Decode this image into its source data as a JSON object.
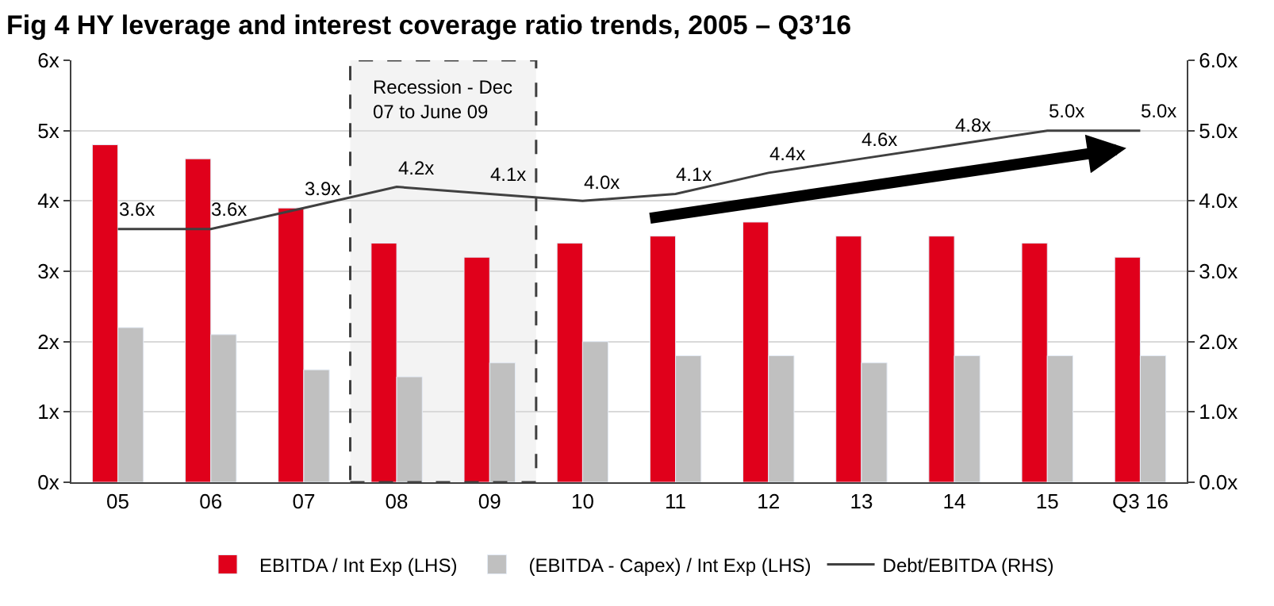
{
  "chart_data": {
    "type": "bar",
    "title": "Fig 4 HY leverage and interest coverage ratio trends, 2005 – Q3’16",
    "categories": [
      "05",
      "06",
      "07",
      "08",
      "09",
      "10",
      "11",
      "12",
      "13",
      "14",
      "15",
      "Q3 16"
    ],
    "series": [
      {
        "name": "EBITDA / Int Exp (LHS)",
        "color": "#e0001b",
        "values": [
          4.8,
          4.6,
          3.9,
          3.4,
          3.2,
          3.4,
          3.5,
          3.7,
          3.5,
          3.5,
          3.4,
          3.2
        ]
      },
      {
        "name": "(EBITDA - Capex) / Int Exp (LHS)",
        "color": "#c0c0c0",
        "values": [
          2.2,
          2.1,
          1.6,
          1.5,
          1.7,
          2.0,
          1.8,
          1.8,
          1.7,
          1.8,
          1.8,
          1.8
        ]
      },
      {
        "name": "Debt/EBITDA (RHS)",
        "type": "line",
        "axis": "y2",
        "color": "#404040",
        "values": [
          3.6,
          3.6,
          3.9,
          4.2,
          4.1,
          4.0,
          4.1,
          4.4,
          4.6,
          4.8,
          5.0,
          5.0
        ],
        "value_labels": [
          "3.6x",
          "3.6x",
          "3.9x",
          "4.2x",
          "4.1x",
          "4.0x",
          "4.1x",
          "4.4x",
          "4.6x",
          "4.8x",
          "5.0x",
          "5.0x"
        ]
      }
    ],
    "ylim": [
      0,
      6
    ],
    "yticks": [
      {
        "value": 0,
        "label": "0x"
      },
      {
        "value": 1,
        "label": "1x"
      },
      {
        "value": 2,
        "label": "2x"
      },
      {
        "value": 3,
        "label": "3x"
      },
      {
        "value": 4,
        "label": "4x"
      },
      {
        "value": 5,
        "label": "5x"
      },
      {
        "value": 6,
        "label": "6x"
      }
    ],
    "y2lim": [
      0,
      6
    ],
    "y2ticks": [
      {
        "value": 0,
        "label": "0.0x"
      },
      {
        "value": 1,
        "label": "1.0x"
      },
      {
        "value": 2,
        "label": "2.0x"
      },
      {
        "value": 3,
        "label": "3.0x"
      },
      {
        "value": 4,
        "label": "4.0x"
      },
      {
        "value": 5,
        "label": "5.0x"
      },
      {
        "value": 6,
        "label": "6.0x"
      }
    ],
    "bands": [
      {
        "axis": "x",
        "from": "08",
        "to": "09",
        "label": "Recession - Dec 07 to June 09",
        "color": "#404040"
      }
    ],
    "grid": "y",
    "legend": "bottom"
  }
}
